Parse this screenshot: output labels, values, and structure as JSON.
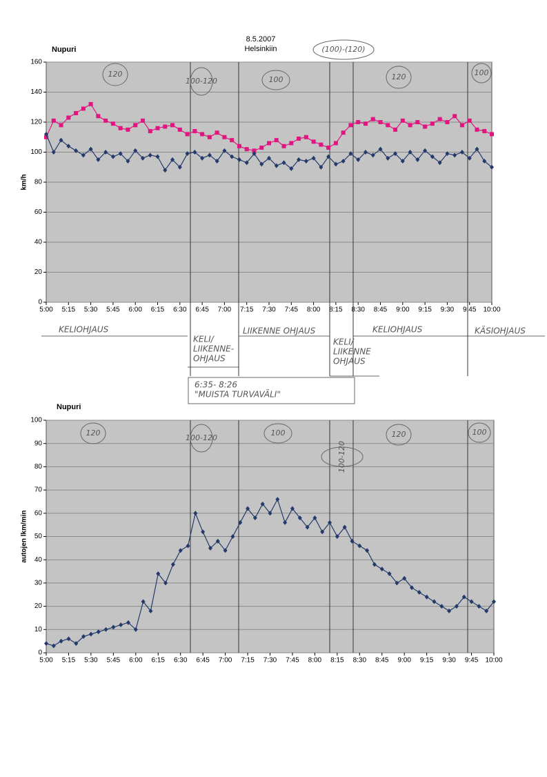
{
  "chart_data": [
    {
      "type": "line",
      "title": "Nupuri",
      "subtitle": [
        "8.5.2007",
        "Helsinkiin"
      ],
      "y_label": "km/h",
      "categories": [
        "5:00",
        null,
        null,
        "5:15",
        null,
        null,
        "5:30",
        null,
        null,
        "5:45",
        null,
        null,
        "6:00",
        null,
        null,
        "6:15",
        null,
        null,
        "6:30",
        null,
        null,
        "6:45",
        null,
        null,
        "7:00",
        null,
        null,
        "7:15",
        null,
        null,
        "7:30",
        null,
        null,
        "7:45",
        null,
        null,
        "8:00",
        null,
        null,
        "8:15",
        null,
        null,
        "8:30",
        null,
        null,
        "8:45",
        null,
        null,
        "9:00",
        null,
        null,
        "9:15",
        null,
        null,
        "9:30",
        null,
        null,
        "9:45",
        null,
        null,
        "10:00"
      ],
      "series": [
        {
          "color": "#e0157f",
          "marker": "square",
          "values": [
            110,
            121,
            118,
            123,
            126,
            129,
            132,
            124,
            121,
            119,
            116,
            115,
            118,
            121,
            114,
            116,
            117,
            118,
            115,
            112,
            114,
            112,
            110,
            113,
            110,
            108,
            104,
            102,
            101,
            103,
            106,
            108,
            104,
            106,
            109,
            110,
            107,
            105,
            103,
            106,
            113,
            118,
            120,
            119,
            122,
            120,
            118,
            115,
            121,
            118,
            120,
            117,
            119,
            122,
            120,
            124,
            118,
            121,
            115,
            114,
            112
          ]
        },
        {
          "color": "#243a6b",
          "marker": "diamond",
          "values": [
            112,
            100,
            108,
            104,
            101,
            98,
            102,
            95,
            100,
            97,
            99,
            94,
            101,
            96,
            98,
            97,
            88,
            95,
            90,
            99,
            100,
            96,
            98,
            94,
            101,
            97,
            95,
            93,
            99,
            92,
            96,
            91,
            93,
            89,
            95,
            94,
            96,
            90,
            97,
            92,
            94,
            99,
            95,
            100,
            98,
            102,
            96,
            99,
            94,
            100,
            95,
            101,
            97,
            93,
            99,
            98,
            100,
            96,
            102,
            94,
            90
          ]
        }
      ],
      "ylim": [
        0,
        160
      ],
      "yticks": [
        0,
        20,
        40,
        60,
        80,
        100,
        120,
        140,
        160
      ],
      "grid": true,
      "annotations": [
        "(100)-(120)",
        "120",
        "100-120",
        "100",
        "120",
        "100"
      ]
    },
    {
      "type": "line",
      "title": "Nupuri",
      "y_label": "autojen lkm/min",
      "categories": [
        "5:00",
        null,
        null,
        "5:15",
        null,
        null,
        "5:30",
        null,
        null,
        "5:45",
        null,
        null,
        "6:00",
        null,
        null,
        "6:15",
        null,
        null,
        "6:30",
        null,
        null,
        "6:45",
        null,
        null,
        "7:00",
        null,
        null,
        "7:15",
        null,
        null,
        "7:30",
        null,
        null,
        "7:45",
        null,
        null,
        "8:00",
        null,
        null,
        "8:15",
        null,
        null,
        "8:30",
        null,
        null,
        "8:45",
        null,
        null,
        "9:00",
        null,
        null,
        "9:15",
        null,
        null,
        "9:30",
        null,
        null,
        "9:45",
        null,
        null,
        "10:00"
      ],
      "series": [
        {
          "color": "#243a6b",
          "marker": "diamond",
          "values": [
            4,
            3,
            5,
            6,
            4,
            7,
            8,
            9,
            10,
            11,
            12,
            13,
            10,
            22,
            18,
            34,
            30,
            38,
            44,
            46,
            60,
            52,
            45,
            48,
            44,
            50,
            56,
            62,
            58,
            64,
            60,
            66,
            56,
            62,
            58,
            54,
            58,
            52,
            56,
            50,
            54,
            48,
            46,
            44,
            38,
            36,
            34,
            30,
            32,
            28,
            26,
            24,
            22,
            20,
            18,
            20,
            24,
            22,
            20,
            18,
            22
          ]
        }
      ],
      "ylim": [
        0,
        100
      ],
      "yticks": [
        0,
        10,
        20,
        30,
        40,
        50,
        60,
        70,
        80,
        90,
        100
      ],
      "grid": true,
      "annotations": [
        "120",
        "100-120",
        "100",
        "100-120",
        "120",
        "100"
      ]
    }
  ],
  "handwritten_notes": [
    [
      "KELIOHJAUS"
    ],
    [
      "KELI/",
      "LIIKENNE-",
      "OHJAUS"
    ],
    [
      "LIIKENNE OHJAUS"
    ],
    [
      "KELI/",
      "LIIKENNE",
      "OHJAUS"
    ],
    [
      "KELIOHJAUS"
    ],
    [
      "KÄSIOHJAUS"
    ],
    [
      "6:35- 8:26",
      "\"MUISTA TURVAVÄLI\""
    ]
  ]
}
